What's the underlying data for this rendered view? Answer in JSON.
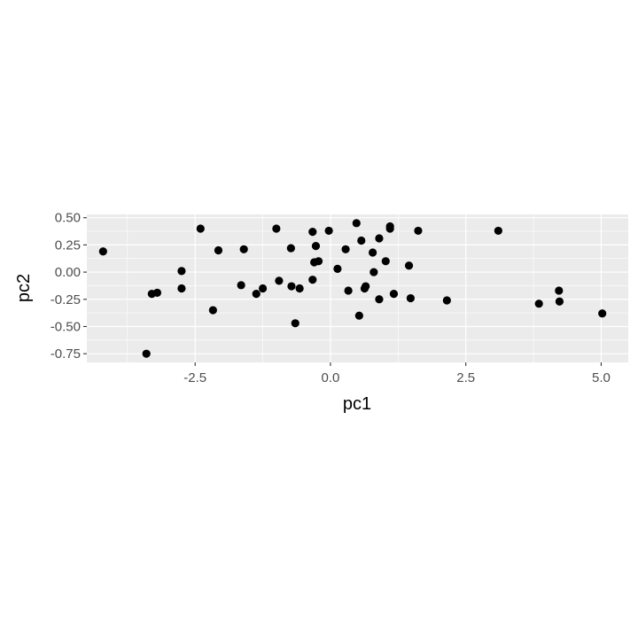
{
  "chart_data": {
    "type": "scatter",
    "title": "",
    "xlabel": "pc1",
    "ylabel": "pc2",
    "xlim": [
      -4.5,
      5.5
    ],
    "ylim": [
      -0.83,
      0.53
    ],
    "x_ticks": [
      -2.5,
      0.0,
      2.5,
      5.0
    ],
    "x_tick_labels": [
      "-2.5",
      "0.0",
      "2.5",
      "5.0"
    ],
    "y_ticks": [
      0.5,
      0.25,
      0.0,
      -0.25,
      -0.5,
      -0.75
    ],
    "y_tick_labels": [
      "0.50",
      "0.25",
      "0.00",
      "-0.25",
      "-0.50",
      "-0.75"
    ],
    "grid": true,
    "legend": "none",
    "colors": {
      "panel_background": "#ebebeb",
      "grid": "#ffffff",
      "point": "#000000",
      "tick_text": "#4d4d4d",
      "axis_title": "#000000"
    },
    "points": [
      {
        "x": -4.2,
        "y": 0.19
      },
      {
        "x": -3.4,
        "y": -0.75
      },
      {
        "x": -3.3,
        "y": -0.2
      },
      {
        "x": -3.2,
        "y": -0.19
      },
      {
        "x": -2.75,
        "y": 0.01
      },
      {
        "x": -2.75,
        "y": -0.15
      },
      {
        "x": -2.4,
        "y": 0.4
      },
      {
        "x": -2.17,
        "y": -0.35
      },
      {
        "x": -2.07,
        "y": 0.2
      },
      {
        "x": -1.65,
        "y": -0.12
      },
      {
        "x": -1.6,
        "y": 0.21
      },
      {
        "x": -1.37,
        "y": -0.2
      },
      {
        "x": -1.25,
        "y": -0.15
      },
      {
        "x": -1.0,
        "y": 0.4
      },
      {
        "x": -0.95,
        "y": -0.08
      },
      {
        "x": -0.73,
        "y": 0.22
      },
      {
        "x": -0.72,
        "y": -0.13
      },
      {
        "x": -0.65,
        "y": -0.47
      },
      {
        "x": -0.57,
        "y": -0.15
      },
      {
        "x": -0.33,
        "y": 0.37
      },
      {
        "x": -0.33,
        "y": -0.07
      },
      {
        "x": -0.3,
        "y": 0.09
      },
      {
        "x": -0.27,
        "y": 0.24
      },
      {
        "x": -0.22,
        "y": 0.1
      },
      {
        "x": -0.03,
        "y": 0.38
      },
      {
        "x": 0.13,
        "y": 0.03
      },
      {
        "x": 0.28,
        "y": 0.21
      },
      {
        "x": 0.33,
        "y": -0.17
      },
      {
        "x": 0.48,
        "y": 0.45
      },
      {
        "x": 0.53,
        "y": -0.4
      },
      {
        "x": 0.57,
        "y": 0.29
      },
      {
        "x": 0.63,
        "y": -0.15
      },
      {
        "x": 0.65,
        "y": -0.13
      },
      {
        "x": 0.78,
        "y": 0.18
      },
      {
        "x": 0.8,
        "y": 0.0
      },
      {
        "x": 0.9,
        "y": 0.31
      },
      {
        "x": 0.9,
        "y": -0.25
      },
      {
        "x": 1.02,
        "y": 0.1
      },
      {
        "x": 1.1,
        "y": 0.42
      },
      {
        "x": 1.1,
        "y": 0.4
      },
      {
        "x": 1.17,
        "y": -0.2
      },
      {
        "x": 1.45,
        "y": 0.06
      },
      {
        "x": 1.48,
        "y": -0.24
      },
      {
        "x": 1.62,
        "y": 0.38
      },
      {
        "x": 2.15,
        "y": -0.26
      },
      {
        "x": 3.1,
        "y": 0.38
      },
      {
        "x": 3.85,
        "y": -0.29
      },
      {
        "x": 4.22,
        "y": -0.17
      },
      {
        "x": 4.23,
        "y": -0.27
      },
      {
        "x": 5.02,
        "y": -0.38
      }
    ]
  }
}
